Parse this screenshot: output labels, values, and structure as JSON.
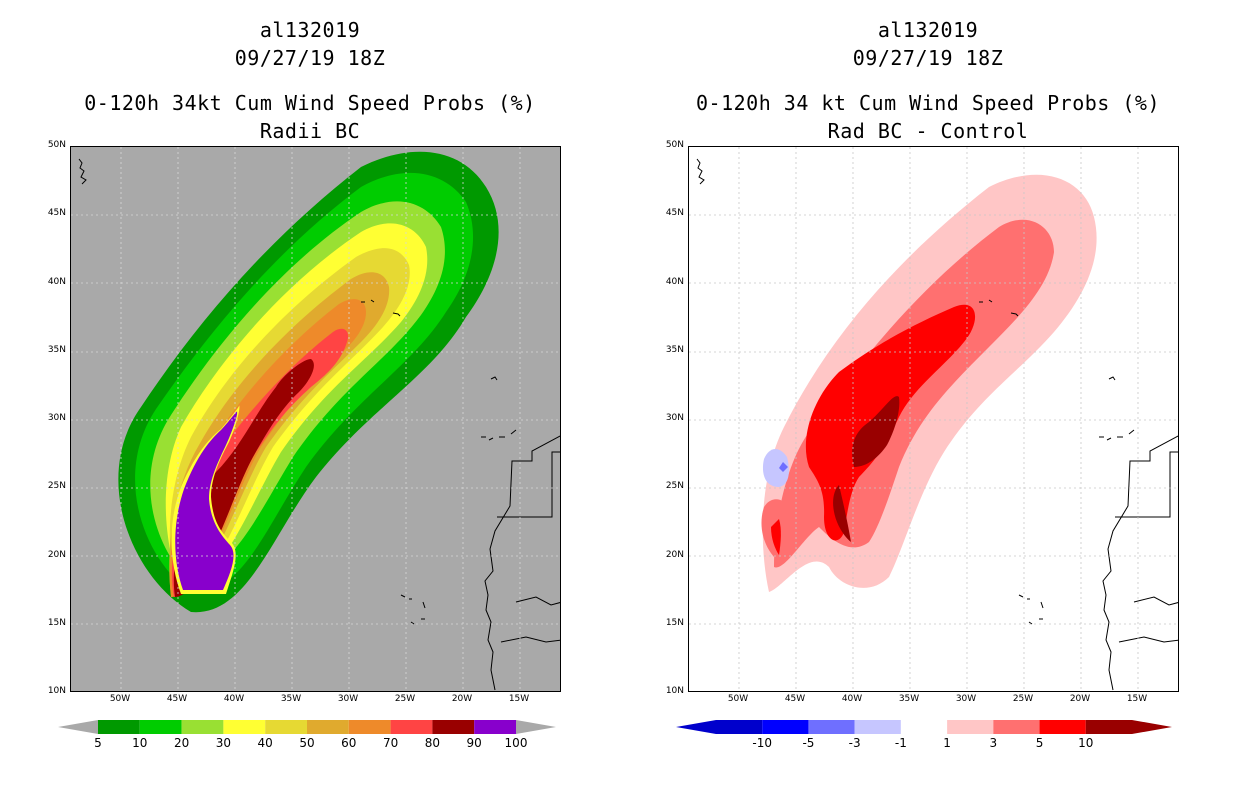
{
  "left": {
    "storm_id": "al132019",
    "datetime": "09/27/19 18Z",
    "title_line1": "0-120h 34kt Cum Wind Speed Probs (%)",
    "title_line2": "Radii BC",
    "colorbar": {
      "colors": [
        "#009900",
        "#00cc00",
        "#99e033",
        "#ffff33",
        "#e6d933",
        "#e0aa2e",
        "#ee8a2a",
        "#ff4444",
        "#990000",
        "#8800cc"
      ],
      "labels": [
        "5",
        "10",
        "20",
        "30",
        "40",
        "50",
        "60",
        "70",
        "80",
        "90",
        "100"
      ]
    }
  },
  "right": {
    "storm_id": "al132019",
    "datetime": "09/27/19 18Z",
    "title_line1": "0-120h 34 kt Cum Wind Speed Probs (%)",
    "title_line2": "Rad BC - Control",
    "colorbar": {
      "colors": [
        "#0000cc",
        "#0000ff",
        "#6f6fff",
        "#c6c6ff",
        "#ffffff",
        "#ffc6c6",
        "#ff7070",
        "#ff0000",
        "#990000"
      ],
      "labels": [
        "-10",
        "-5",
        "-3",
        "-1",
        "1",
        "3",
        "5",
        "10"
      ]
    }
  },
  "axes": {
    "lat_labels": [
      "50N",
      "45N",
      "40N",
      "35N",
      "30N",
      "25N",
      "20N",
      "15N",
      "10N"
    ],
    "lon_labels": [
      "50W",
      "45W",
      "40W",
      "35W",
      "30W",
      "25W",
      "20W",
      "15W"
    ]
  }
}
